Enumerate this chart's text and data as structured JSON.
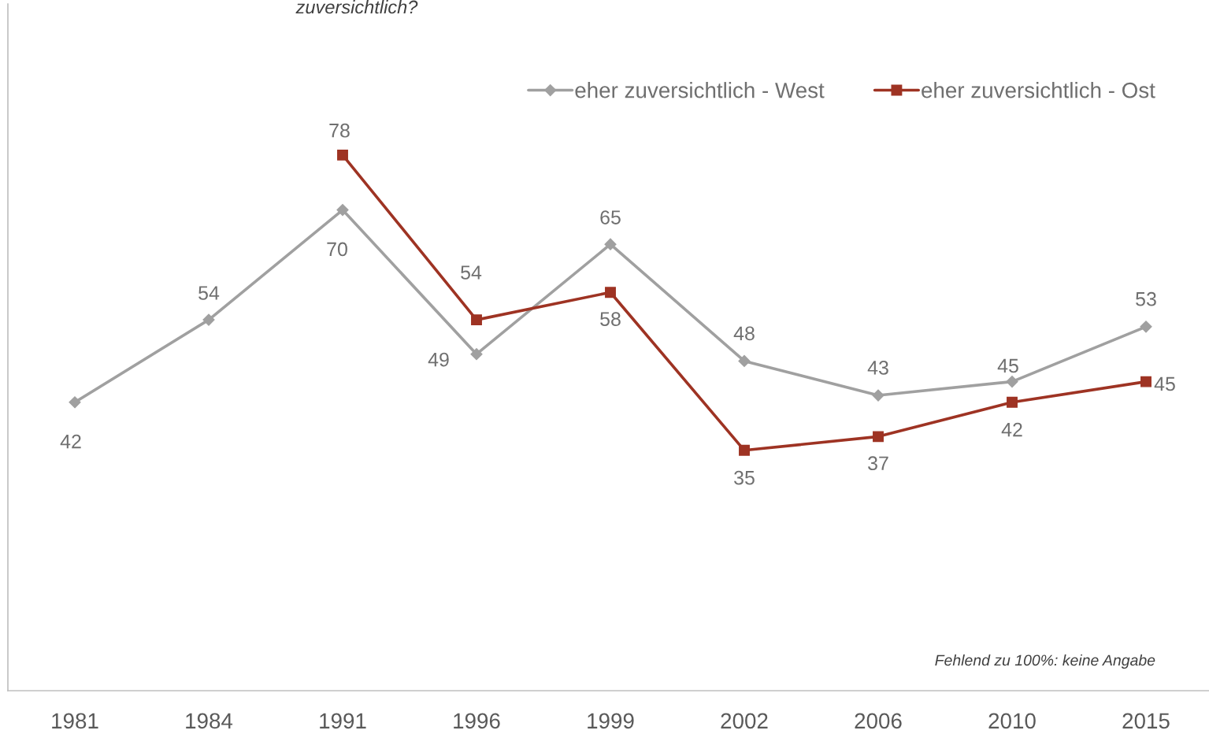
{
  "chart_data": {
    "type": "line",
    "title": "zuversichtlich?",
    "categories": [
      "1981",
      "1984",
      "1991",
      "1996",
      "1999",
      "2002",
      "2006",
      "2010",
      "2015"
    ],
    "ylim": [
      0,
      100
    ],
    "series": [
      {
        "name": "eher zuversichtlich - West",
        "color": "#a0a0a0",
        "marker": "diamond",
        "values": [
          42,
          54,
          70,
          49,
          65,
          48,
          43,
          45,
          53
        ]
      },
      {
        "name": "eher zuversichtlich - Ost",
        "color": "#9e3323",
        "marker": "square",
        "values": [
          null,
          null,
          78,
          54,
          58,
          35,
          37,
          42,
          45
        ]
      }
    ],
    "data_labels": true,
    "legend": "top right",
    "tick_labels": "x",
    "grid": false,
    "line_style": "solid",
    "annotations": [
      "Fehlend zu 100%: keine Angabe"
    ]
  }
}
